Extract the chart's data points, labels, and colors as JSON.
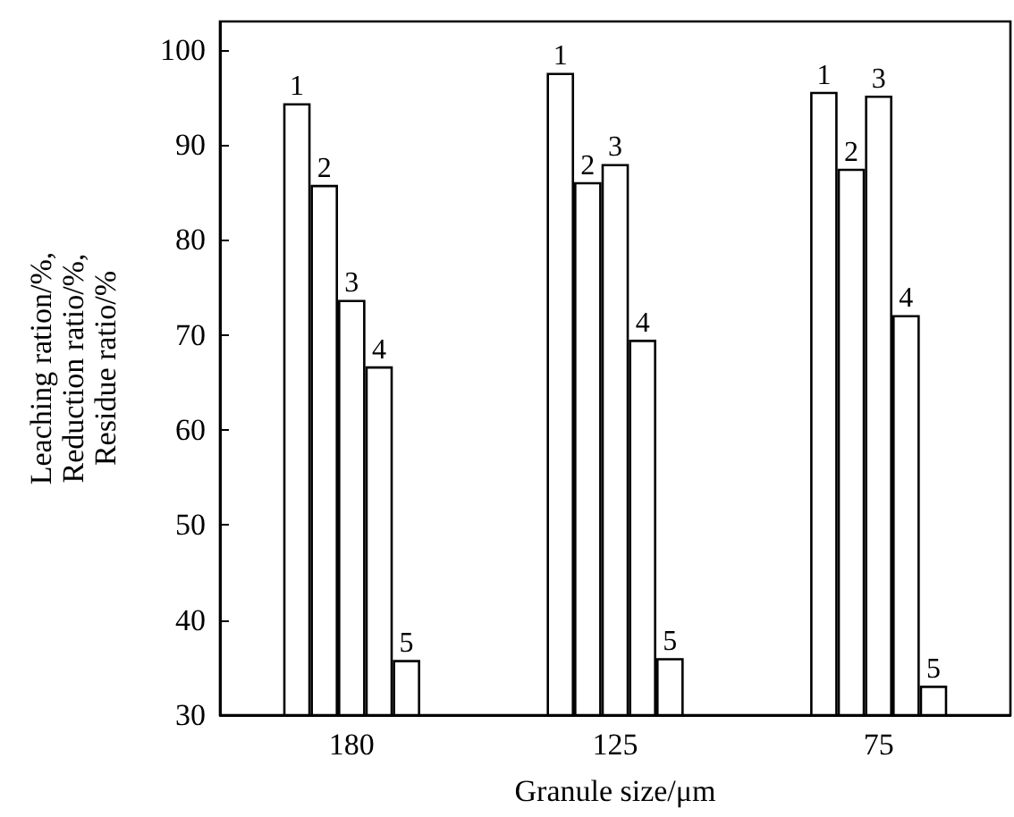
{
  "chart_data": {
    "type": "bar",
    "xlabel": "Granule size/μm",
    "ylabel": "Leaching ration/%,\nReduction ratio/%,\nResidue ratio/%",
    "categories": [
      "180",
      "125",
      "75"
    ],
    "series": [
      {
        "name": "1",
        "color": "#ffffff",
        "values": [
          94.4,
          97.6,
          95.6
        ]
      },
      {
        "name": "2",
        "color": "#ffffff",
        "values": [
          85.8,
          86.1,
          87.5
        ]
      },
      {
        "name": "3",
        "color": "#ffffff",
        "values": [
          73.7,
          88.0,
          95.2
        ]
      },
      {
        "name": "4",
        "color": "#ffffff",
        "values": [
          66.7,
          69.5,
          72.1
        ]
      },
      {
        "name": "5",
        "color": "#ffffff",
        "values": [
          35.8,
          36.0,
          33.1
        ]
      }
    ],
    "ylim": [
      30,
      103
    ],
    "yticks": [
      30,
      40,
      50,
      60,
      70,
      80,
      90,
      100
    ],
    "grid": false,
    "legend": false
  }
}
